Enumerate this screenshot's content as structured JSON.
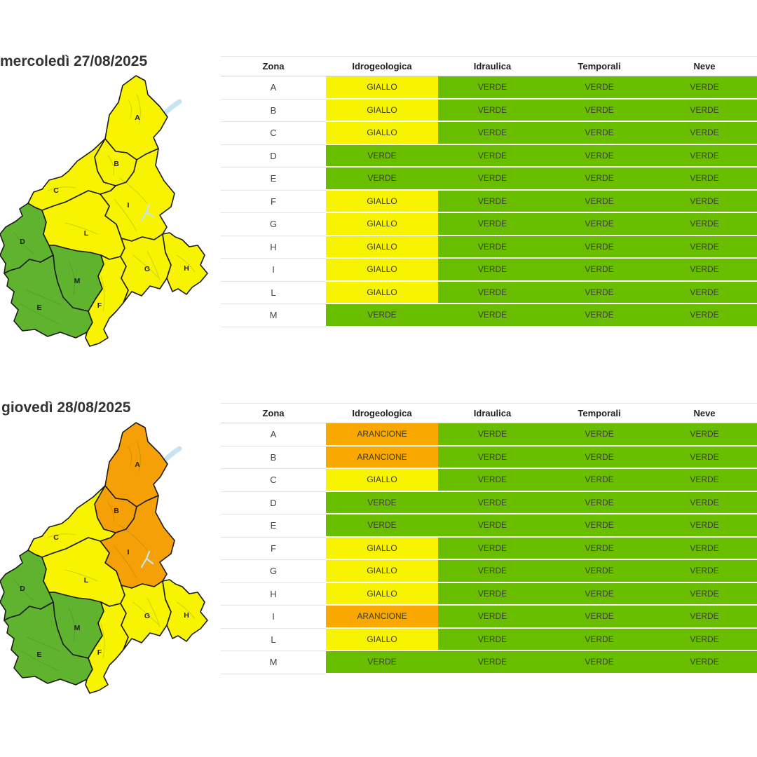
{
  "colors": {
    "giallo": "#f8f400",
    "arancione": "#f9a800",
    "verde_table": "#69be00",
    "verde_map": "#5fb32e",
    "giallo_map": "#f8f400",
    "arancione_map": "#f6a008",
    "lake": "#c7e3f4",
    "boundary": "#1b1b1b"
  },
  "table_headers": [
    "Zona",
    "Idrogeologica",
    "Idraulica",
    "Temporali",
    "Neve"
  ],
  "level_columns": [
    "idrogeologica",
    "idraulica",
    "temporali",
    "neve"
  ],
  "days": [
    {
      "title": "mercoledì 27/08/2025",
      "rows": [
        {
          "zona": "A",
          "idrogeologica": "GIALLO",
          "idraulica": "VERDE",
          "temporali": "VERDE",
          "neve": "VERDE"
        },
        {
          "zona": "B",
          "idrogeologica": "GIALLO",
          "idraulica": "VERDE",
          "temporali": "VERDE",
          "neve": "VERDE"
        },
        {
          "zona": "C",
          "idrogeologica": "GIALLO",
          "idraulica": "VERDE",
          "temporali": "VERDE",
          "neve": "VERDE"
        },
        {
          "zona": "D",
          "idrogeologica": "VERDE",
          "idraulica": "VERDE",
          "temporali": "VERDE",
          "neve": "VERDE"
        },
        {
          "zona": "E",
          "idrogeologica": "VERDE",
          "idraulica": "VERDE",
          "temporali": "VERDE",
          "neve": "VERDE"
        },
        {
          "zona": "F",
          "idrogeologica": "GIALLO",
          "idraulica": "VERDE",
          "temporali": "VERDE",
          "neve": "VERDE"
        },
        {
          "zona": "G",
          "idrogeologica": "GIALLO",
          "idraulica": "VERDE",
          "temporali": "VERDE",
          "neve": "VERDE"
        },
        {
          "zona": "H",
          "idrogeologica": "GIALLO",
          "idraulica": "VERDE",
          "temporali": "VERDE",
          "neve": "VERDE"
        },
        {
          "zona": "I",
          "idrogeologica": "GIALLO",
          "idraulica": "VERDE",
          "temporali": "VERDE",
          "neve": "VERDE"
        },
        {
          "zona": "L",
          "idrogeologica": "GIALLO",
          "idraulica": "VERDE",
          "temporali": "VERDE",
          "neve": "VERDE"
        },
        {
          "zona": "M",
          "idrogeologica": "VERDE",
          "idraulica": "VERDE",
          "temporali": "VERDE",
          "neve": "VERDE"
        }
      ]
    },
    {
      "title": "giovedì 28/08/2025",
      "rows": [
        {
          "zona": "A",
          "idrogeologica": "ARANCIONE",
          "idraulica": "VERDE",
          "temporali": "VERDE",
          "neve": "VERDE"
        },
        {
          "zona": "B",
          "idrogeologica": "ARANCIONE",
          "idraulica": "VERDE",
          "temporali": "VERDE",
          "neve": "VERDE"
        },
        {
          "zona": "C",
          "idrogeologica": "GIALLO",
          "idraulica": "VERDE",
          "temporali": "VERDE",
          "neve": "VERDE"
        },
        {
          "zona": "D",
          "idrogeologica": "VERDE",
          "idraulica": "VERDE",
          "temporali": "VERDE",
          "neve": "VERDE"
        },
        {
          "zona": "E",
          "idrogeologica": "VERDE",
          "idraulica": "VERDE",
          "temporali": "VERDE",
          "neve": "VERDE"
        },
        {
          "zona": "F",
          "idrogeologica": "GIALLO",
          "idraulica": "VERDE",
          "temporali": "VERDE",
          "neve": "VERDE"
        },
        {
          "zona": "G",
          "idrogeologica": "GIALLO",
          "idraulica": "VERDE",
          "temporali": "VERDE",
          "neve": "VERDE"
        },
        {
          "zona": "H",
          "idrogeologica": "GIALLO",
          "idraulica": "VERDE",
          "temporali": "VERDE",
          "neve": "VERDE"
        },
        {
          "zona": "I",
          "idrogeologica": "ARANCIONE",
          "idraulica": "VERDE",
          "temporali": "VERDE",
          "neve": "VERDE"
        },
        {
          "zona": "L",
          "idrogeologica": "GIALLO",
          "idraulica": "VERDE",
          "temporali": "VERDE",
          "neve": "VERDE"
        },
        {
          "zona": "M",
          "idrogeologica": "VERDE",
          "idraulica": "VERDE",
          "temporali": "VERDE",
          "neve": "VERDE"
        }
      ]
    }
  ]
}
